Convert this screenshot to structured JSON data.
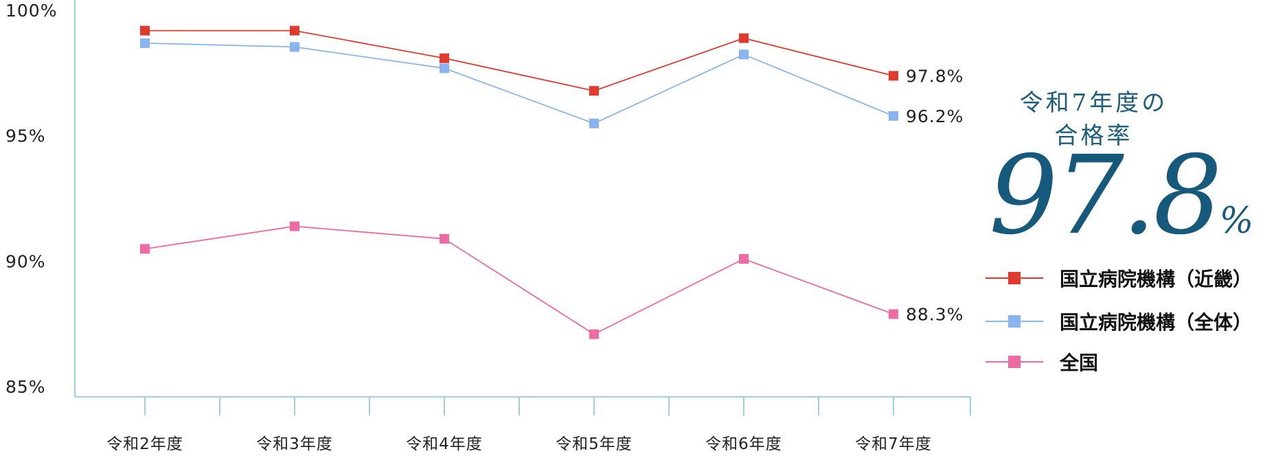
{
  "chart_data": {
    "type": "line",
    "categories": [
      "令和2年度",
      "令和3年度",
      "令和4年度",
      "令和5年度",
      "令和6年度",
      "令和7年度"
    ],
    "ylim": [
      85,
      100
    ],
    "yticks": [
      {
        "value": 100,
        "label": "100%"
      },
      {
        "value": 95,
        "label": "95%"
      },
      {
        "value": 90,
        "label": "90%"
      },
      {
        "value": 85,
        "label": "85%"
      }
    ],
    "series": [
      {
        "name": "国立病院機構（近畿）",
        "color": "#e03a2e",
        "values": [
          99.6,
          99.6,
          98.5,
          97.2,
          99.3,
          97.8
        ],
        "end_label": "97.8%"
      },
      {
        "name": "国立病院機構（全体）",
        "color": "#8ab4f0",
        "values": [
          99.1,
          98.95,
          98.1,
          95.9,
          98.65,
          96.2
        ],
        "end_label": "96.2%"
      },
      {
        "name": "全国",
        "color": "#ee6aa2",
        "values": [
          90.9,
          91.8,
          91.3,
          87.5,
          90.5,
          88.3
        ],
        "end_label": "88.3%"
      }
    ],
    "grid": false,
    "legend": "right"
  },
  "side": {
    "caption_line1": "令和7年度の",
    "caption_line2": "合格率",
    "big_value": "97.8",
    "big_unit": "%"
  }
}
